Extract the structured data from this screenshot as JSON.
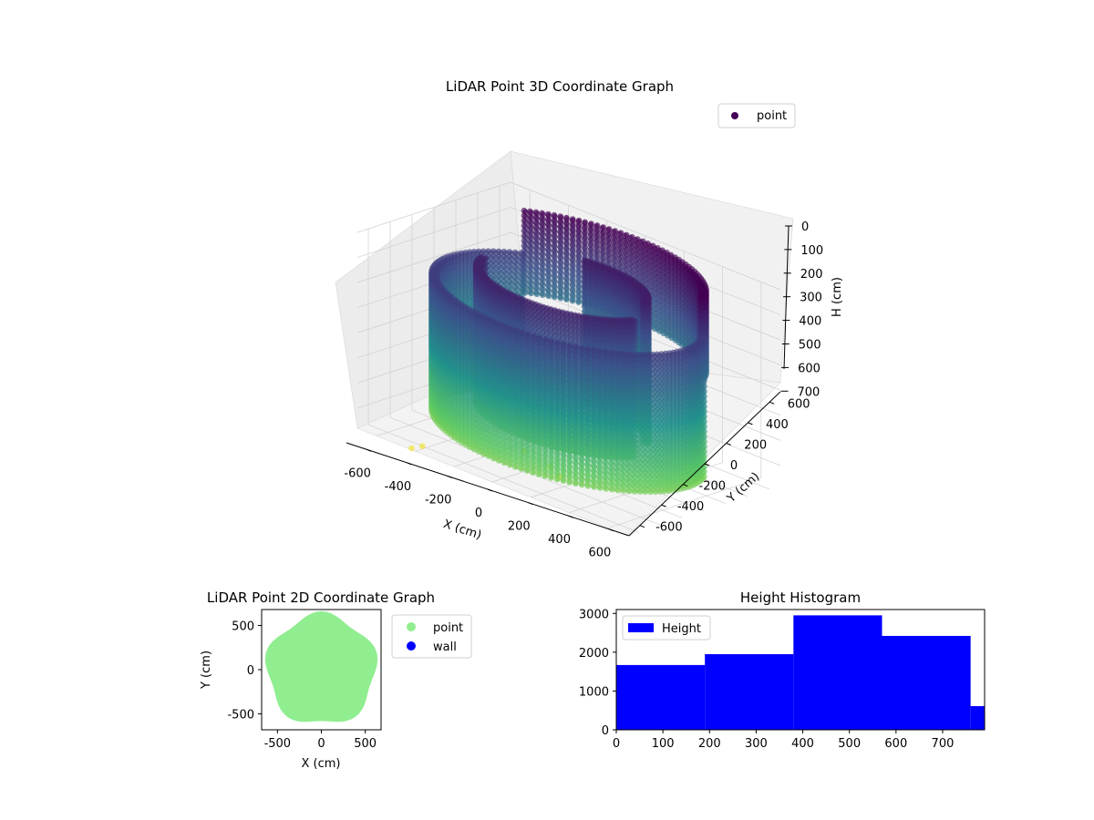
{
  "chart_data": [
    {
      "type": "scatter3d",
      "title": "LiDAR Point 3D Coordinate Graph",
      "xlabel": "X (cm)",
      "ylabel": "Y (cm)",
      "zlabel": "H (cm)",
      "xlim": [
        -700,
        700
      ],
      "ylim": [
        -700,
        700
      ],
      "zlim": [
        0,
        780
      ],
      "z_inverted": true,
      "xticks": [
        -600,
        -400,
        -200,
        0,
        200,
        400,
        600
      ],
      "yticks": [
        -600,
        -400,
        -200,
        0,
        200,
        400,
        600
      ],
      "zticks": [
        0,
        100,
        200,
        300,
        400,
        500,
        600,
        700
      ],
      "grid": true,
      "legend": {
        "placement": "top-right",
        "entries": [
          {
            "label": "point",
            "color": "#440154"
          }
        ]
      },
      "colormap": "viridis",
      "series": [
        {
          "shape": "outer-arc-wall",
          "radius": 620,
          "angle_start_deg": 140,
          "angle_end_deg": 380,
          "h_top": 170,
          "h_bottom": 720
        },
        {
          "shape": "back-wall",
          "radius": 620,
          "angle_start_deg": 20,
          "angle_end_deg": 140,
          "h_top": 0,
          "h_bottom": 320
        },
        {
          "shape": "inner-arc-wall",
          "radius": 420,
          "angle_start_deg": 190,
          "angle_end_deg": 345,
          "h_top": 100,
          "h_bottom": 640
        },
        {
          "shape": "inner-arc-wall",
          "radius": 360,
          "angle_start_deg": 20,
          "angle_end_deg": 110,
          "h_top": 80,
          "h_bottom": 640
        }
      ],
      "outliers": [
        {
          "x": -420,
          "y": -600,
          "h": 880
        },
        {
          "x": -430,
          "y": -680,
          "h": 880
        },
        {
          "x": -150,
          "y": -150,
          "h": 900
        },
        {
          "x": 30,
          "y": -220,
          "h": 880
        },
        {
          "x": 120,
          "y": -300,
          "h": 900
        }
      ]
    },
    {
      "type": "scatter",
      "title": "LiDAR Point 2D Coordinate Graph",
      "xlabel": "X (cm)",
      "ylabel": "Y (cm)",
      "xlim": [
        -680,
        680
      ],
      "ylim": [
        -680,
        680
      ],
      "xticks": [
        -500,
        0,
        500
      ],
      "yticks": [
        -500,
        0,
        500
      ],
      "legend": {
        "placement": "outside-right",
        "entries": [
          {
            "label": "point",
            "color": "#90ee90"
          },
          {
            "label": "wall",
            "color": "#0000ff"
          }
        ]
      },
      "region": {
        "shape": "filled-disc",
        "radius": 660,
        "color": "#90ee90"
      }
    },
    {
      "type": "histogram",
      "title": "Height Histogram",
      "xlim": [
        0,
        790
      ],
      "ylim": [
        0,
        3100
      ],
      "xticks": [
        0,
        100,
        200,
        300,
        400,
        500,
        600,
        700
      ],
      "yticks": [
        0,
        1000,
        2000,
        3000
      ],
      "legend": {
        "placement": "top-left",
        "entries": [
          {
            "label": "Height",
            "color": "#0000ff"
          }
        ]
      },
      "bins": [
        0,
        190,
        380,
        570,
        760,
        790
      ],
      "counts": [
        1670,
        1950,
        2950,
        2420,
        610
      ],
      "color": "#0000ff"
    }
  ]
}
